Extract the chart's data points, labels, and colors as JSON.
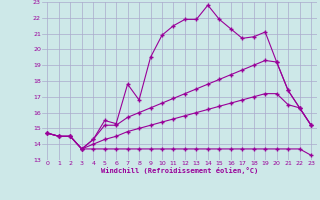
{
  "xlabel": "Windchill (Refroidissement éolien,°C)",
  "bg_color": "#cde8e8",
  "grid_color": "#aaaacc",
  "line_color": "#990099",
  "xlim": [
    -0.5,
    23.5
  ],
  "ylim": [
    13,
    23
  ],
  "yticks": [
    13,
    14,
    15,
    16,
    17,
    18,
    19,
    20,
    21,
    22,
    23
  ],
  "xticks": [
    0,
    1,
    2,
    3,
    4,
    5,
    6,
    7,
    8,
    9,
    10,
    11,
    12,
    13,
    14,
    15,
    16,
    17,
    18,
    19,
    20,
    21,
    22,
    23
  ],
  "series1_x": [
    0,
    1,
    2,
    3,
    4,
    5,
    6,
    7,
    8,
    9,
    10,
    11,
    12,
    13,
    14,
    15,
    16,
    17,
    18,
    19,
    20,
    21,
    22,
    23
  ],
  "series1_y": [
    14.7,
    14.5,
    14.5,
    13.7,
    14.3,
    15.5,
    15.3,
    17.8,
    16.8,
    19.5,
    20.9,
    21.5,
    21.9,
    21.9,
    22.8,
    21.9,
    21.3,
    20.7,
    20.8,
    21.1,
    19.2,
    17.4,
    16.3,
    15.2
  ],
  "series2_x": [
    0,
    1,
    2,
    3,
    4,
    5,
    6,
    7,
    8,
    9,
    10,
    11,
    12,
    13,
    14,
    15,
    16,
    17,
    18,
    19,
    20,
    21,
    22,
    23
  ],
  "series2_y": [
    14.7,
    14.5,
    14.5,
    13.7,
    14.3,
    15.2,
    15.2,
    15.7,
    16.0,
    16.3,
    16.6,
    16.9,
    17.2,
    17.5,
    17.8,
    18.1,
    18.4,
    18.7,
    19.0,
    19.3,
    19.2,
    17.4,
    16.3,
    15.2
  ],
  "series3_x": [
    0,
    1,
    2,
    3,
    4,
    5,
    6,
    7,
    8,
    9,
    10,
    11,
    12,
    13,
    14,
    15,
    16,
    17,
    18,
    19,
    20,
    21,
    22,
    23
  ],
  "series3_y": [
    14.7,
    14.5,
    14.5,
    13.7,
    14.0,
    14.3,
    14.5,
    14.8,
    15.0,
    15.2,
    15.4,
    15.6,
    15.8,
    16.0,
    16.2,
    16.4,
    16.6,
    16.8,
    17.0,
    17.2,
    17.2,
    16.5,
    16.3,
    15.2
  ],
  "series4_x": [
    0,
    1,
    2,
    3,
    4,
    5,
    6,
    7,
    8,
    9,
    10,
    11,
    12,
    13,
    14,
    15,
    16,
    17,
    18,
    19,
    20,
    21,
    22,
    23
  ],
  "series4_y": [
    14.7,
    14.5,
    14.5,
    13.7,
    13.7,
    13.7,
    13.7,
    13.7,
    13.7,
    13.7,
    13.7,
    13.7,
    13.7,
    13.7,
    13.7,
    13.7,
    13.7,
    13.7,
    13.7,
    13.7,
    13.7,
    13.7,
    13.7,
    13.3
  ]
}
